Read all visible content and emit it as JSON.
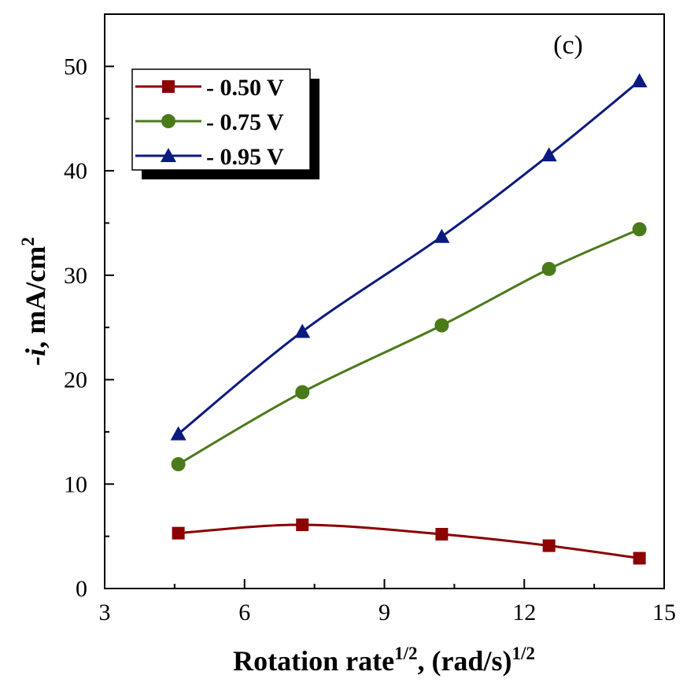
{
  "chart_data": {
    "type": "line",
    "panel_label": "(c)",
    "xlabel": {
      "main": "Rotation rate",
      "sup1": "1/2",
      "mid": ", (rad/s)",
      "sup2": "1/2"
    },
    "ylabel": {
      "italic": "-i",
      "main": ", mA/cm",
      "sup": "2"
    },
    "xlim": [
      3,
      15
    ],
    "ylim": [
      0,
      55
    ],
    "xticks": [
      3,
      6,
      9,
      12,
      15
    ],
    "yticks": [
      0,
      10,
      20,
      30,
      40,
      50
    ],
    "grid": false,
    "legend_position": "top-left",
    "series": [
      {
        "name": "- 0.50 V",
        "color": "#8b0000",
        "marker": "square",
        "x": [
          4.58,
          7.24,
          10.23,
          12.53,
          14.47
        ],
        "y": [
          5.3,
          6.1,
          5.2,
          4.1,
          2.9
        ]
      },
      {
        "name": "- 0.75 V",
        "color": "#4a7a1a",
        "marker": "circle",
        "x": [
          4.58,
          7.24,
          10.23,
          12.53,
          14.47
        ],
        "y": [
          11.9,
          18.8,
          25.2,
          30.6,
          34.4
        ]
      },
      {
        "name": "- 0.95 V",
        "color": "#0a1a80",
        "marker": "triangle",
        "x": [
          4.58,
          7.24,
          10.23,
          12.53,
          14.47
        ],
        "y": [
          14.8,
          24.6,
          33.7,
          41.5,
          48.6
        ]
      }
    ]
  }
}
